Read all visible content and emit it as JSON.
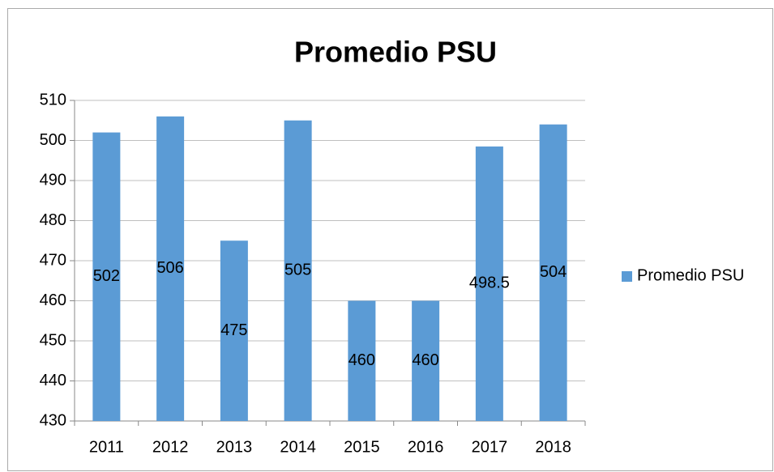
{
  "chart_data": {
    "type": "bar",
    "title": "Promedio PSU",
    "categories": [
      "2011",
      "2012",
      "2013",
      "2014",
      "2015",
      "2016",
      "2017",
      "2018"
    ],
    "series": [
      {
        "name": "Promedio PSU",
        "color": "#5b9bd5",
        "values": [
          502,
          506,
          475,
          505,
          460,
          460,
          498.5,
          504
        ]
      }
    ],
    "ylim": [
      430,
      510
    ],
    "yticks": [
      430,
      440,
      450,
      460,
      470,
      480,
      490,
      500,
      510
    ],
    "grid": true,
    "legend": "right",
    "data_labels": true
  }
}
